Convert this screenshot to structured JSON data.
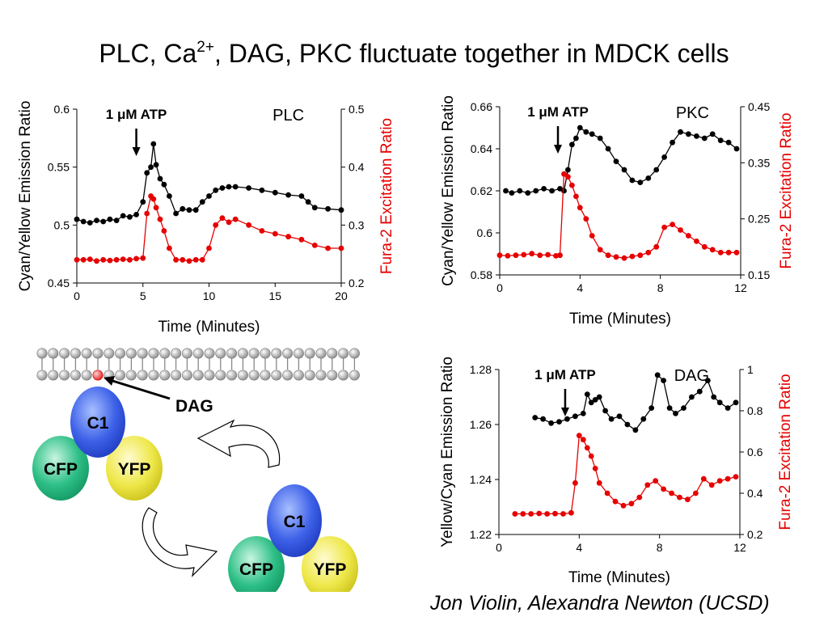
{
  "slide": {
    "title_prefix": "PLC, Ca",
    "title_sup": "2+",
    "title_suffix": ", DAG, PKC fluctuate together in MDCK cells",
    "credit": "Jon Violin, Alexandra Newton (UCSD)"
  },
  "colors": {
    "black_series": "#000000",
    "red_series": "#e60000",
    "red_axis": "#e60000"
  },
  "diagram": {
    "dag_label": "DAG",
    "sensor_top": {
      "c1": "C1",
      "cfp": "CFP",
      "yfp": "YFP"
    },
    "sensor_bottom": {
      "c1": "C1",
      "cfp": "CFP",
      "yfp": "YFP"
    },
    "icons": [
      "membrane-bilayer",
      "cycle-arrows"
    ],
    "c1_color": "#2f55e0",
    "cfp_color": "#1fae7a",
    "yfp_color": "#e8e23a"
  },
  "chart_data": [
    {
      "type": "line",
      "title": "PLC",
      "annotation": "1 μM ATP",
      "xlabel": "Time (Minutes)",
      "ylabel": "Cyan/Yellow Emission Ratio",
      "y2label": "Fura-2 Excitation Ratio",
      "xlim": [
        0,
        20
      ],
      "ylim": [
        0.45,
        0.6
      ],
      "y2lim": [
        0.2,
        0.5
      ],
      "xticks": [
        0,
        5,
        10,
        15,
        20
      ],
      "yticks": [
        0.45,
        0.5,
        0.55,
        0.6
      ],
      "y2ticks": [
        0.2,
        0.3,
        0.4,
        0.5
      ],
      "xtick_labels": [
        "0",
        "5",
        "10",
        "15",
        "20"
      ],
      "ytick_labels": [
        "0.45",
        "0.5",
        "0.55",
        "0.6"
      ],
      "y2tick_labels": [
        "0.2",
        "0.3",
        "0.4",
        "0.5"
      ],
      "annotation_x": 4.5,
      "series": [
        {
          "axis": "left",
          "x": [
            0,
            0.5,
            1,
            1.5,
            2,
            2.5,
            3,
            3.5,
            4,
            4.5,
            5,
            5.3,
            5.6,
            5.8,
            6,
            6.3,
            6.6,
            7,
            7.5,
            8,
            8.5,
            9,
            9.5,
            10,
            10.5,
            11,
            11.5,
            12,
            13,
            14,
            15,
            16,
            17,
            17.5,
            18,
            19,
            20
          ],
          "y": [
            0.505,
            0.503,
            0.502,
            0.504,
            0.503,
            0.505,
            0.504,
            0.508,
            0.507,
            0.509,
            0.52,
            0.545,
            0.55,
            0.57,
            0.552,
            0.54,
            0.535,
            0.525,
            0.51,
            0.514,
            0.513,
            0.513,
            0.52,
            0.525,
            0.53,
            0.532,
            0.533,
            0.533,
            0.532,
            0.53,
            0.528,
            0.526,
            0.525,
            0.52,
            0.515,
            0.514,
            0.513
          ]
        },
        {
          "axis": "right",
          "x": [
            0,
            0.5,
            1,
            1.5,
            2,
            2.5,
            3,
            3.5,
            4,
            4.5,
            5,
            5.3,
            5.6,
            5.8,
            6,
            6.3,
            6.6,
            7,
            7.5,
            8,
            8.5,
            9,
            9.5,
            10,
            10.5,
            11,
            11.5,
            12,
            13,
            14,
            15,
            16,
            17,
            18,
            19,
            20
          ],
          "y": [
            0.24,
            0.24,
            0.241,
            0.238,
            0.24,
            0.239,
            0.24,
            0.241,
            0.24,
            0.242,
            0.243,
            0.32,
            0.35,
            0.345,
            0.33,
            0.31,
            0.29,
            0.26,
            0.24,
            0.24,
            0.238,
            0.24,
            0.24,
            0.26,
            0.3,
            0.312,
            0.305,
            0.31,
            0.3,
            0.29,
            0.285,
            0.28,
            0.275,
            0.265,
            0.26,
            0.26
          ]
        }
      ]
    },
    {
      "type": "line",
      "title": "PKC",
      "annotation": "1 μM ATP",
      "xlabel": "Time (Minutes)",
      "ylabel": "Cyan/Yellow Emission Ratio",
      "y2label": "Fura-2 Excitation Ratio",
      "xlim": [
        0,
        12
      ],
      "ylim": [
        0.58,
        0.66
      ],
      "y2lim": [
        0.15,
        0.45
      ],
      "xticks": [
        0,
        4,
        8,
        12
      ],
      "yticks": [
        0.58,
        0.6,
        0.62,
        0.64,
        0.66
      ],
      "y2ticks": [
        0.15,
        0.25,
        0.35,
        0.45
      ],
      "xtick_labels": [
        "0",
        "4",
        "8",
        "12"
      ],
      "ytick_labels": [
        "0.58",
        "0.6",
        "0.62",
        "0.64",
        "0.66"
      ],
      "y2tick_labels": [
        "0.15",
        "0.25",
        "0.35",
        "0.45"
      ],
      "annotation_x": 2.9,
      "series": [
        {
          "axis": "left",
          "x": [
            0.3,
            0.6,
            1,
            1.4,
            1.8,
            2.2,
            2.6,
            3,
            3.2,
            3.4,
            3.6,
            3.8,
            4,
            4.3,
            4.6,
            5,
            5.4,
            5.8,
            6.2,
            6.6,
            7,
            7.4,
            7.8,
            8.2,
            8.6,
            9,
            9.4,
            9.8,
            10.2,
            10.6,
            11,
            11.4,
            11.8
          ],
          "y": [
            0.62,
            0.619,
            0.62,
            0.619,
            0.62,
            0.621,
            0.62,
            0.621,
            0.62,
            0.63,
            0.642,
            0.645,
            0.65,
            0.648,
            0.647,
            0.645,
            0.64,
            0.634,
            0.63,
            0.625,
            0.624,
            0.626,
            0.63,
            0.636,
            0.643,
            0.648,
            0.647,
            0.646,
            0.645,
            0.647,
            0.644,
            0.643,
            0.64
          ]
        },
        {
          "axis": "right",
          "x": [
            0,
            0.4,
            0.8,
            1.2,
            1.6,
            2,
            2.4,
            2.8,
            3,
            3.2,
            3.4,
            3.6,
            3.8,
            4,
            4.3,
            4.6,
            5,
            5.4,
            5.8,
            6.2,
            6.6,
            7,
            7.4,
            7.8,
            8.2,
            8.6,
            9,
            9.4,
            9.8,
            10.2,
            10.6,
            11,
            11.4,
            11.8
          ],
          "y": [
            0.185,
            0.184,
            0.185,
            0.186,
            0.188,
            0.185,
            0.186,
            0.184,
            0.185,
            0.33,
            0.325,
            0.31,
            0.29,
            0.27,
            0.25,
            0.22,
            0.195,
            0.185,
            0.182,
            0.18,
            0.183,
            0.185,
            0.19,
            0.2,
            0.235,
            0.24,
            0.23,
            0.22,
            0.21,
            0.2,
            0.195,
            0.19,
            0.19,
            0.19
          ]
        }
      ]
    },
    {
      "type": "line",
      "title": "DAG",
      "annotation": "1 μM ATP",
      "xlabel": "Time (Minutes)",
      "ylabel": "Yellow/Cyan Emission Ratio",
      "y2label": "Fura-2 Excitation Ratio",
      "xlim": [
        0,
        12
      ],
      "ylim": [
        1.22,
        1.28
      ],
      "y2lim": [
        0.2,
        1.0
      ],
      "xticks": [
        0,
        4,
        8,
        12
      ],
      "yticks": [
        1.22,
        1.24,
        1.26,
        1.28
      ],
      "y2ticks": [
        0.2,
        0.4,
        0.6,
        0.8,
        1.0
      ],
      "xtick_labels": [
        "0",
        "4",
        "8",
        "12"
      ],
      "ytick_labels": [
        "1.22",
        "1.24",
        "1.26",
        "1.28"
      ],
      "y2tick_labels": [
        "0.2",
        "0.4",
        "0.6",
        "0.8",
        "1"
      ],
      "annotation_x": 3.3,
      "series": [
        {
          "axis": "left",
          "x": [
            1.8,
            2.2,
            2.6,
            3,
            3.4,
            3.8,
            4.2,
            4.4,
            4.6,
            4.8,
            5,
            5.3,
            5.6,
            6,
            6.4,
            6.8,
            7.2,
            7.6,
            7.9,
            8.2,
            8.5,
            8.8,
            9.2,
            9.6,
            10,
            10.4,
            10.7,
            11,
            11.4,
            11.8
          ],
          "y": [
            1.2625,
            1.262,
            1.2605,
            1.261,
            1.262,
            1.263,
            1.264,
            1.271,
            1.268,
            1.269,
            1.27,
            1.265,
            1.262,
            1.263,
            1.26,
            1.258,
            1.262,
            1.266,
            1.278,
            1.276,
            1.266,
            1.264,
            1.266,
            1.27,
            1.272,
            1.276,
            1.27,
            1.268,
            1.266,
            1.268
          ]
        },
        {
          "axis": "right",
          "x": [
            0.8,
            1.2,
            1.6,
            2,
            2.4,
            2.8,
            3.2,
            3.6,
            3.8,
            4,
            4.2,
            4.4,
            4.6,
            4.8,
            5,
            5.4,
            5.8,
            6.2,
            6.6,
            7,
            7.4,
            7.8,
            8.2,
            8.6,
            9,
            9.4,
            9.8,
            10.2,
            10.6,
            11,
            11.4,
            11.8
          ],
          "y": [
            0.3,
            0.3,
            0.3,
            0.302,
            0.3,
            0.301,
            0.3,
            0.305,
            0.45,
            0.68,
            0.66,
            0.62,
            0.58,
            0.52,
            0.45,
            0.4,
            0.36,
            0.34,
            0.35,
            0.38,
            0.44,
            0.46,
            0.42,
            0.4,
            0.38,
            0.37,
            0.4,
            0.47,
            0.44,
            0.46,
            0.47,
            0.48
          ]
        }
      ]
    }
  ]
}
